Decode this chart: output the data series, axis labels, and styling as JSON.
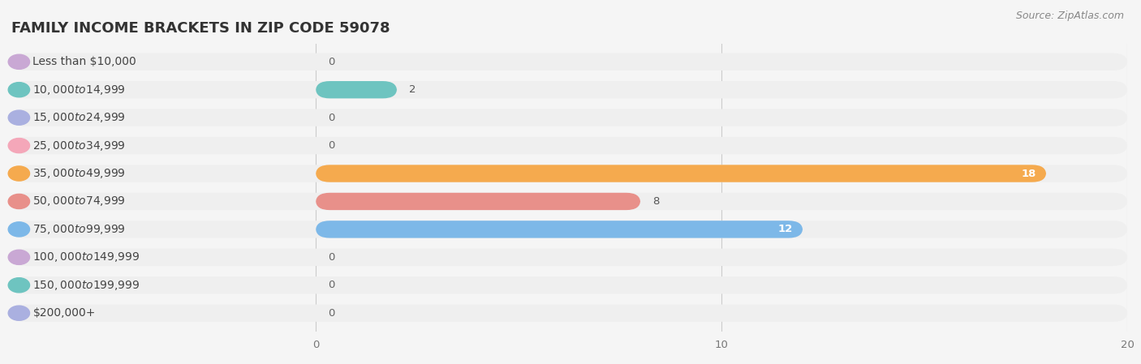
{
  "title": "FAMILY INCOME BRACKETS IN ZIP CODE 59078",
  "source": "Source: ZipAtlas.com",
  "categories": [
    "Less than $10,000",
    "$10,000 to $14,999",
    "$15,000 to $24,999",
    "$25,000 to $34,999",
    "$35,000 to $49,999",
    "$50,000 to $74,999",
    "$75,000 to $99,999",
    "$100,000 to $149,999",
    "$150,000 to $199,999",
    "$200,000+"
  ],
  "values": [
    0,
    2,
    0,
    0,
    18,
    8,
    12,
    0,
    0,
    0
  ],
  "bar_colors": [
    "#c9a8d4",
    "#6ec4c0",
    "#aab0e0",
    "#f4a7b9",
    "#f5aa4e",
    "#e8908a",
    "#7db8e8",
    "#c9a8d4",
    "#6ec4c0",
    "#aab0e0"
  ],
  "background_color": "#f5f5f5",
  "bar_background_color": "#e8e8e8",
  "row_background_color": "#efefef",
  "xlim": [
    0,
    20
  ],
  "xticks": [
    0,
    10,
    20
  ],
  "title_fontsize": 13,
  "label_fontsize": 10,
  "value_fontsize": 9.5,
  "source_fontsize": 9
}
